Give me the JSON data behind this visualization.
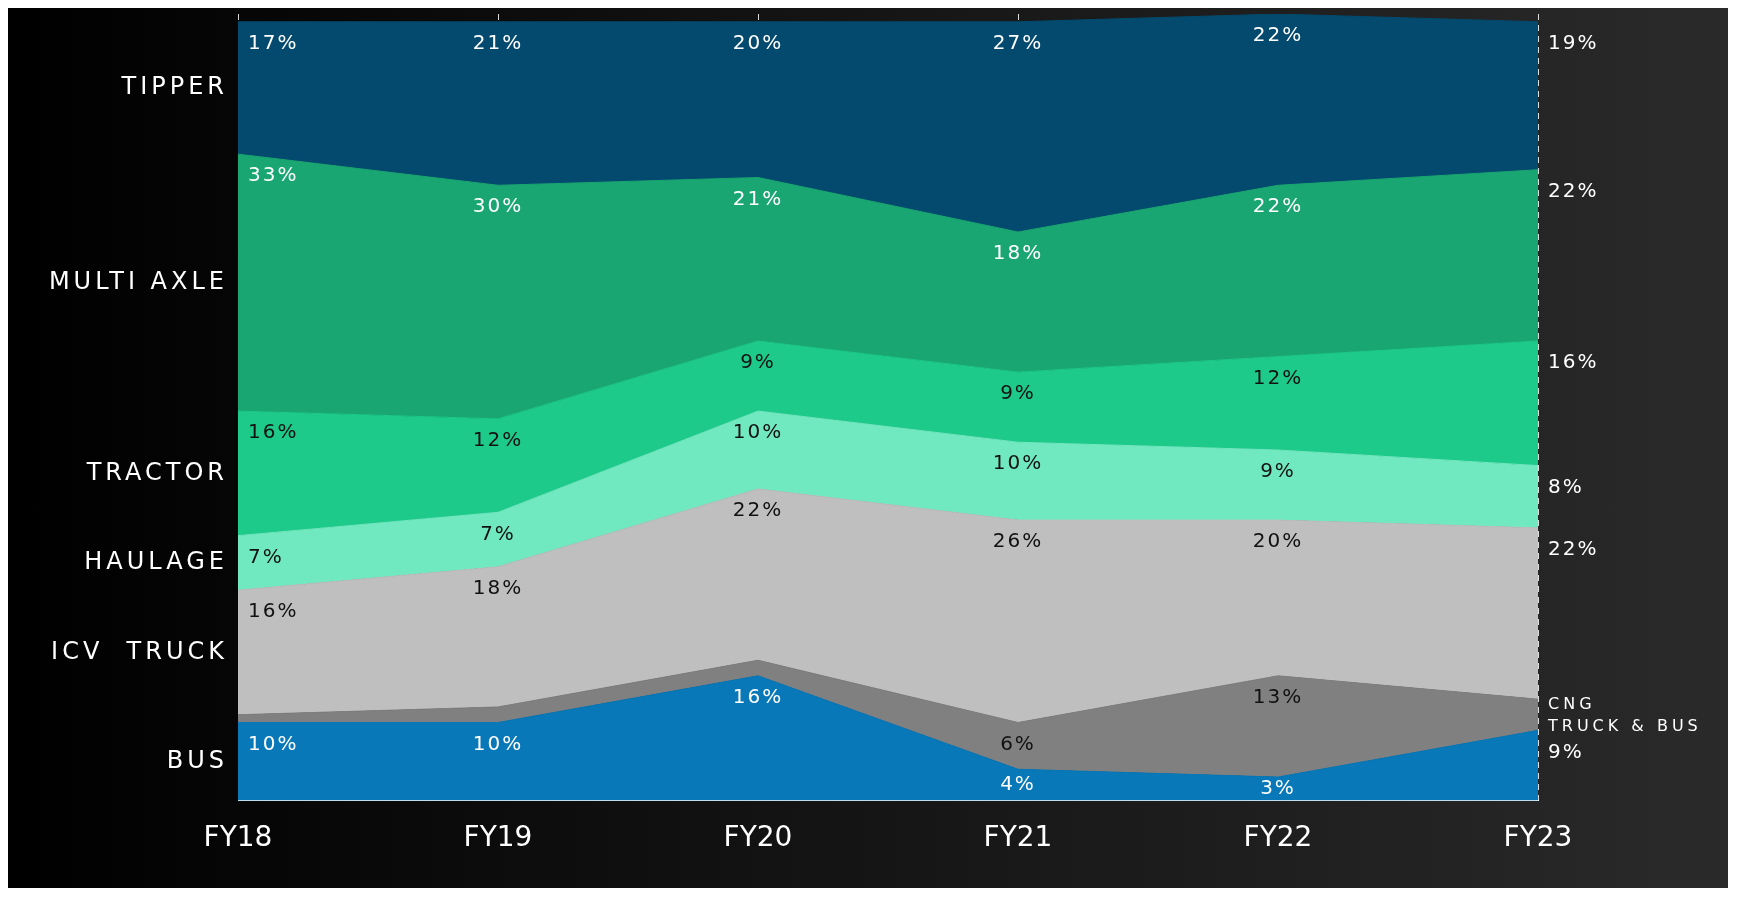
{
  "chart_data": {
    "type": "area",
    "stacked": true,
    "categories": [
      "FY18",
      "FY19",
      "FY20",
      "FY21",
      "FY22",
      "FY23"
    ],
    "ylim": [
      0,
      101
    ],
    "tick_labels": "x",
    "grid": "x",
    "legend": false,
    "series": [
      {
        "name": "BUS",
        "color": "#0878b8",
        "values": [
          10,
          10,
          16,
          4,
          3,
          9
        ],
        "value_labels": [
          "10%",
          "10%",
          "16%",
          "4%",
          "3%",
          "9%"
        ]
      },
      {
        "name": "CNG TRUCK & BUS",
        "color": "#808080",
        "values": [
          1,
          2,
          2,
          6,
          13,
          4
        ],
        "value_labels": [
          null,
          null,
          null,
          "6%",
          "13%",
          null
        ]
      },
      {
        "name": "ICV  TRUCK",
        "color": "#bfbfbf",
        "values": [
          16,
          18,
          22,
          26,
          20,
          22
        ],
        "value_labels": [
          "16%",
          "18%",
          "22%",
          "26%",
          "20%",
          "22%"
        ]
      },
      {
        "name": "HAULAGE",
        "color": "#70e9c1",
        "values": [
          7,
          7,
          10,
          10,
          9,
          8
        ],
        "value_labels": [
          "7%",
          "7%",
          "10%",
          "10%",
          "9%",
          "8%"
        ]
      },
      {
        "name": "TRACTOR",
        "color": "#1dca8a",
        "values": [
          16,
          12,
          9,
          9,
          12,
          16
        ],
        "value_labels": [
          "16%",
          "12%",
          "9%",
          "9%",
          "12%",
          "16%"
        ]
      },
      {
        "name": "MULTI AXLE",
        "color": "#19a672",
        "values": [
          33,
          30,
          21,
          18,
          22,
          22
        ],
        "value_labels": [
          "33%",
          "30%",
          "21%",
          "18%",
          "22%",
          "22%"
        ]
      },
      {
        "name": "TIPPER",
        "color": "#034a6e",
        "values": [
          17,
          21,
          20,
          27,
          22,
          19
        ],
        "value_labels": [
          "17%",
          "21%",
          "20%",
          "27%",
          "22%",
          "19%"
        ]
      }
    ]
  }
}
